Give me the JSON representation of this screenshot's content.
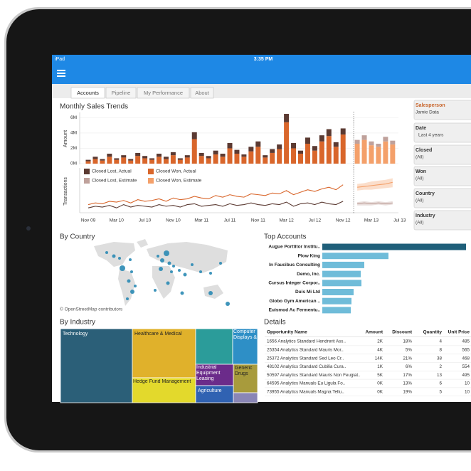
{
  "status_bar": {
    "device": "iPad",
    "time": "3:35 PM"
  },
  "tabs": [
    "Accounts",
    "Pipeline",
    "My Performance",
    "About"
  ],
  "filters": [
    {
      "label": "Salesperson",
      "value": "Jamie Data"
    },
    {
      "label": "Date",
      "value": "Last 4 years"
    },
    {
      "label": "Closed",
      "value": "(All)"
    },
    {
      "label": "Won",
      "value": "(All)"
    },
    {
      "label": "Country",
      "value": "(All)"
    },
    {
      "label": "Industry",
      "value": "(All)"
    }
  ],
  "map": {
    "title": "By Country",
    "attribution": "© OpenStreetMap contributors"
  },
  "industry": {
    "title": "By Industry",
    "tiles": [
      "Technology",
      "Healthcare & Medical",
      "Hedge Fund Management",
      "Industrial Equipment Leasing",
      "Agriculture",
      "Computer Displays &",
      "Generic Drugs"
    ]
  },
  "details": {
    "title": "Details",
    "columns": [
      "Opportunity Name",
      "Amount",
      "Discount",
      "Quantity",
      "Unit Price"
    ],
    "rows": [
      [
        "1656 Analytics Standard Hendrerit Ass..",
        "2K",
        "18%",
        "4",
        "485"
      ],
      [
        "25354 Analytics Standard Mauris Mor..",
        "4K",
        "5%",
        "8",
        "565"
      ],
      [
        "25372 Analytics Standard Sed Leo Cr..",
        "14K",
        "21%",
        "38",
        "468"
      ],
      [
        "48102 Analytics Standard Cubilia Cura..",
        "1K",
        "6%",
        "2",
        "554"
      ],
      [
        "50597 Analytics Standard Mauris Non Feugiat..",
        "5K",
        "17%",
        "13",
        "495"
      ],
      [
        "64595 Analytics Manuals Eu Ligula Fo..",
        "0K",
        "13%",
        "6",
        "10"
      ],
      [
        "73955 Analytics Manuals Magna Tellu..",
        "0K",
        "19%",
        "5",
        "10"
      ]
    ]
  },
  "chart_data": [
    {
      "type": "bar",
      "stacked": true,
      "title": "Monthly Sales Trends",
      "y_label": "Amount",
      "ylim": [
        0,
        6.5
      ],
      "yticks": [
        {
          "value": 0,
          "label": "0M"
        },
        {
          "value": 2,
          "label": "2M"
        },
        {
          "value": 4,
          "label": "4M"
        },
        {
          "value": 6,
          "label": "6M"
        }
      ],
      "series": [
        {
          "name": "Closed Lost, Actual",
          "color": "#5b3a32",
          "values": [
            0.2,
            0.3,
            0.2,
            0.4,
            0.2,
            0.3,
            0.2,
            0.4,
            0.3,
            0.2,
            0.4,
            0.3,
            0.4,
            0.2,
            0.3,
            0.9,
            0.4,
            0.3,
            0.5,
            0.4,
            0.7,
            0.5,
            0.3,
            0.6,
            0.7,
            0.3,
            0.5,
            0.6,
            1.1,
            0.7,
            0.4,
            0.8,
            0.6,
            0.8,
            0.9,
            0.6,
            0.8,
            null,
            null,
            null,
            null,
            null,
            null,
            null,
            null
          ]
        },
        {
          "name": "Closed Won, Actual",
          "color": "#d9662b",
          "values": [
            0.3,
            0.6,
            0.4,
            0.9,
            0.5,
            0.8,
            0.4,
            1.0,
            0.7,
            0.5,
            0.9,
            0.6,
            1.1,
            0.5,
            0.8,
            3.2,
            1.0,
            0.7,
            1.2,
            0.9,
            2.0,
            1.3,
            0.9,
            1.6,
            2.2,
            0.8,
            1.4,
            1.9,
            5.4,
            2.0,
            1.3,
            2.6,
            1.7,
            2.9,
            3.6,
            2.2,
            3.8,
            null,
            null,
            null,
            null,
            null,
            null,
            null,
            null
          ]
        },
        {
          "name": "Closed Lost, Estimate",
          "color": "#bfa19b",
          "values": [
            null,
            null,
            null,
            null,
            null,
            null,
            null,
            null,
            null,
            null,
            null,
            null,
            null,
            null,
            null,
            null,
            null,
            null,
            null,
            null,
            null,
            null,
            null,
            null,
            null,
            null,
            null,
            null,
            null,
            null,
            null,
            null,
            null,
            null,
            null,
            null,
            null,
            null,
            0.5,
            0.6,
            0.5,
            0.4,
            0.6,
            0.5,
            null
          ]
        },
        {
          "name": "Closed Won, Estimate",
          "color": "#f4a06a",
          "values": [
            null,
            null,
            null,
            null,
            null,
            null,
            null,
            null,
            null,
            null,
            null,
            null,
            null,
            null,
            null,
            null,
            null,
            null,
            null,
            null,
            null,
            null,
            null,
            null,
            null,
            null,
            null,
            null,
            null,
            null,
            null,
            null,
            null,
            null,
            null,
            null,
            null,
            null,
            2.6,
            3.1,
            2.4,
            2.2,
            2.9,
            2.5,
            null
          ]
        }
      ]
    },
    {
      "type": "line",
      "y_label": "Transactions",
      "ylim": [
        0,
        50
      ],
      "categories": [
        "Nov 09",
        null,
        null,
        null,
        "Mar 10",
        null,
        null,
        null,
        "Jul 10",
        null,
        null,
        null,
        "Nov 10",
        null,
        null,
        null,
        "Mar 11",
        null,
        null,
        null,
        "Jul 11",
        null,
        null,
        null,
        "Nov 11",
        null,
        null,
        null,
        "Mar 12",
        null,
        null,
        null,
        "Jul 12",
        null,
        null,
        null,
        "Nov 12",
        null,
        null,
        null,
        "Mar 13",
        null,
        null,
        null,
        "Jul 13"
      ],
      "series": [
        {
          "color": "#5b3a32",
          "values": [
            5,
            7,
            6,
            8,
            5,
            9,
            6,
            8,
            7,
            6,
            9,
            7,
            8,
            6,
            9,
            10,
            7,
            8,
            9,
            7,
            10,
            8,
            9,
            11,
            9,
            8,
            10,
            9,
            12,
            7,
            10,
            11,
            9,
            12,
            10,
            9,
            13,
            null,
            null,
            null,
            null,
            null,
            null,
            null,
            null
          ]
        },
        {
          "color": "#d9662b",
          "values": [
            9,
            11,
            10,
            13,
            12,
            14,
            11,
            15,
            13,
            14,
            16,
            13,
            17,
            15,
            16,
            19,
            17,
            16,
            20,
            18,
            21,
            19,
            18,
            22,
            21,
            20,
            23,
            22,
            26,
            21,
            24,
            27,
            25,
            28,
            30,
            27,
            33,
            null,
            null,
            null,
            null,
            null,
            null,
            null,
            null
          ]
        },
        {
          "color": "#bfa19b",
          "values": [
            null,
            null,
            null,
            null,
            null,
            null,
            null,
            null,
            null,
            null,
            null,
            null,
            null,
            null,
            null,
            null,
            null,
            null,
            null,
            null,
            null,
            null,
            null,
            null,
            null,
            null,
            null,
            null,
            null,
            null,
            null,
            null,
            null,
            null,
            null,
            null,
            null,
            null,
            10,
            11,
            10,
            11,
            10,
            11,
            null
          ],
          "low": [
            null,
            null,
            null,
            null,
            null,
            null,
            null,
            null,
            null,
            null,
            null,
            null,
            null,
            null,
            null,
            null,
            null,
            null,
            null,
            null,
            null,
            null,
            null,
            null,
            null,
            null,
            null,
            null,
            null,
            null,
            null,
            null,
            null,
            null,
            null,
            null,
            null,
            null,
            8,
            8,
            8,
            9,
            8,
            9,
            null
          ],
          "high": [
            null,
            null,
            null,
            null,
            null,
            null,
            null,
            null,
            null,
            null,
            null,
            null,
            null,
            null,
            null,
            null,
            null,
            null,
            null,
            null,
            null,
            null,
            null,
            null,
            null,
            null,
            null,
            null,
            null,
            null,
            null,
            null,
            null,
            null,
            null,
            null,
            null,
            null,
            12,
            13,
            12,
            13,
            12,
            13,
            null
          ]
        },
        {
          "color": "#f4a06a",
          "values": [
            null,
            null,
            null,
            null,
            null,
            null,
            null,
            null,
            null,
            null,
            null,
            null,
            null,
            null,
            null,
            null,
            null,
            null,
            null,
            null,
            null,
            null,
            null,
            null,
            null,
            null,
            null,
            null,
            null,
            null,
            null,
            null,
            null,
            null,
            null,
            null,
            null,
            null,
            30,
            31,
            32,
            33,
            34,
            36,
            null
          ],
          "low": [
            null,
            null,
            null,
            null,
            null,
            null,
            null,
            null,
            null,
            null,
            null,
            null,
            null,
            null,
            null,
            null,
            null,
            null,
            null,
            null,
            null,
            null,
            null,
            null,
            null,
            null,
            null,
            null,
            null,
            null,
            null,
            null,
            null,
            null,
            null,
            null,
            null,
            null,
            26,
            27,
            27,
            28,
            29,
            30,
            null
          ],
          "high": [
            null,
            null,
            null,
            null,
            null,
            null,
            null,
            null,
            null,
            null,
            null,
            null,
            null,
            null,
            null,
            null,
            null,
            null,
            null,
            null,
            null,
            null,
            null,
            null,
            null,
            null,
            null,
            null,
            null,
            null,
            null,
            null,
            null,
            null,
            null,
            null,
            null,
            null,
            34,
            35,
            37,
            38,
            39,
            41,
            null
          ]
        }
      ]
    },
    {
      "type": "hbar",
      "title": "Top Accounts",
      "categories": [
        "Augue Porttitor Institu..",
        "Plow King",
        "In Faucibus Consulting",
        "Demo, Inc.",
        "Cursus Integer Corpor..",
        "Duis Mi Ltd",
        "Globo Gym American ..",
        "Euismod Ac Fermentu.."
      ],
      "values": [
        202,
        93,
        59,
        54,
        55,
        44,
        41,
        40
      ],
      "colors": [
        "#1f5f7a",
        "#6fbcd9",
        "#6fbcd9",
        "#6fbcd9",
        "#6fbcd9",
        "#6fbcd9",
        "#6fbcd9",
        "#6fbcd9"
      ],
      "xlim": [
        0,
        210
      ]
    }
  ]
}
